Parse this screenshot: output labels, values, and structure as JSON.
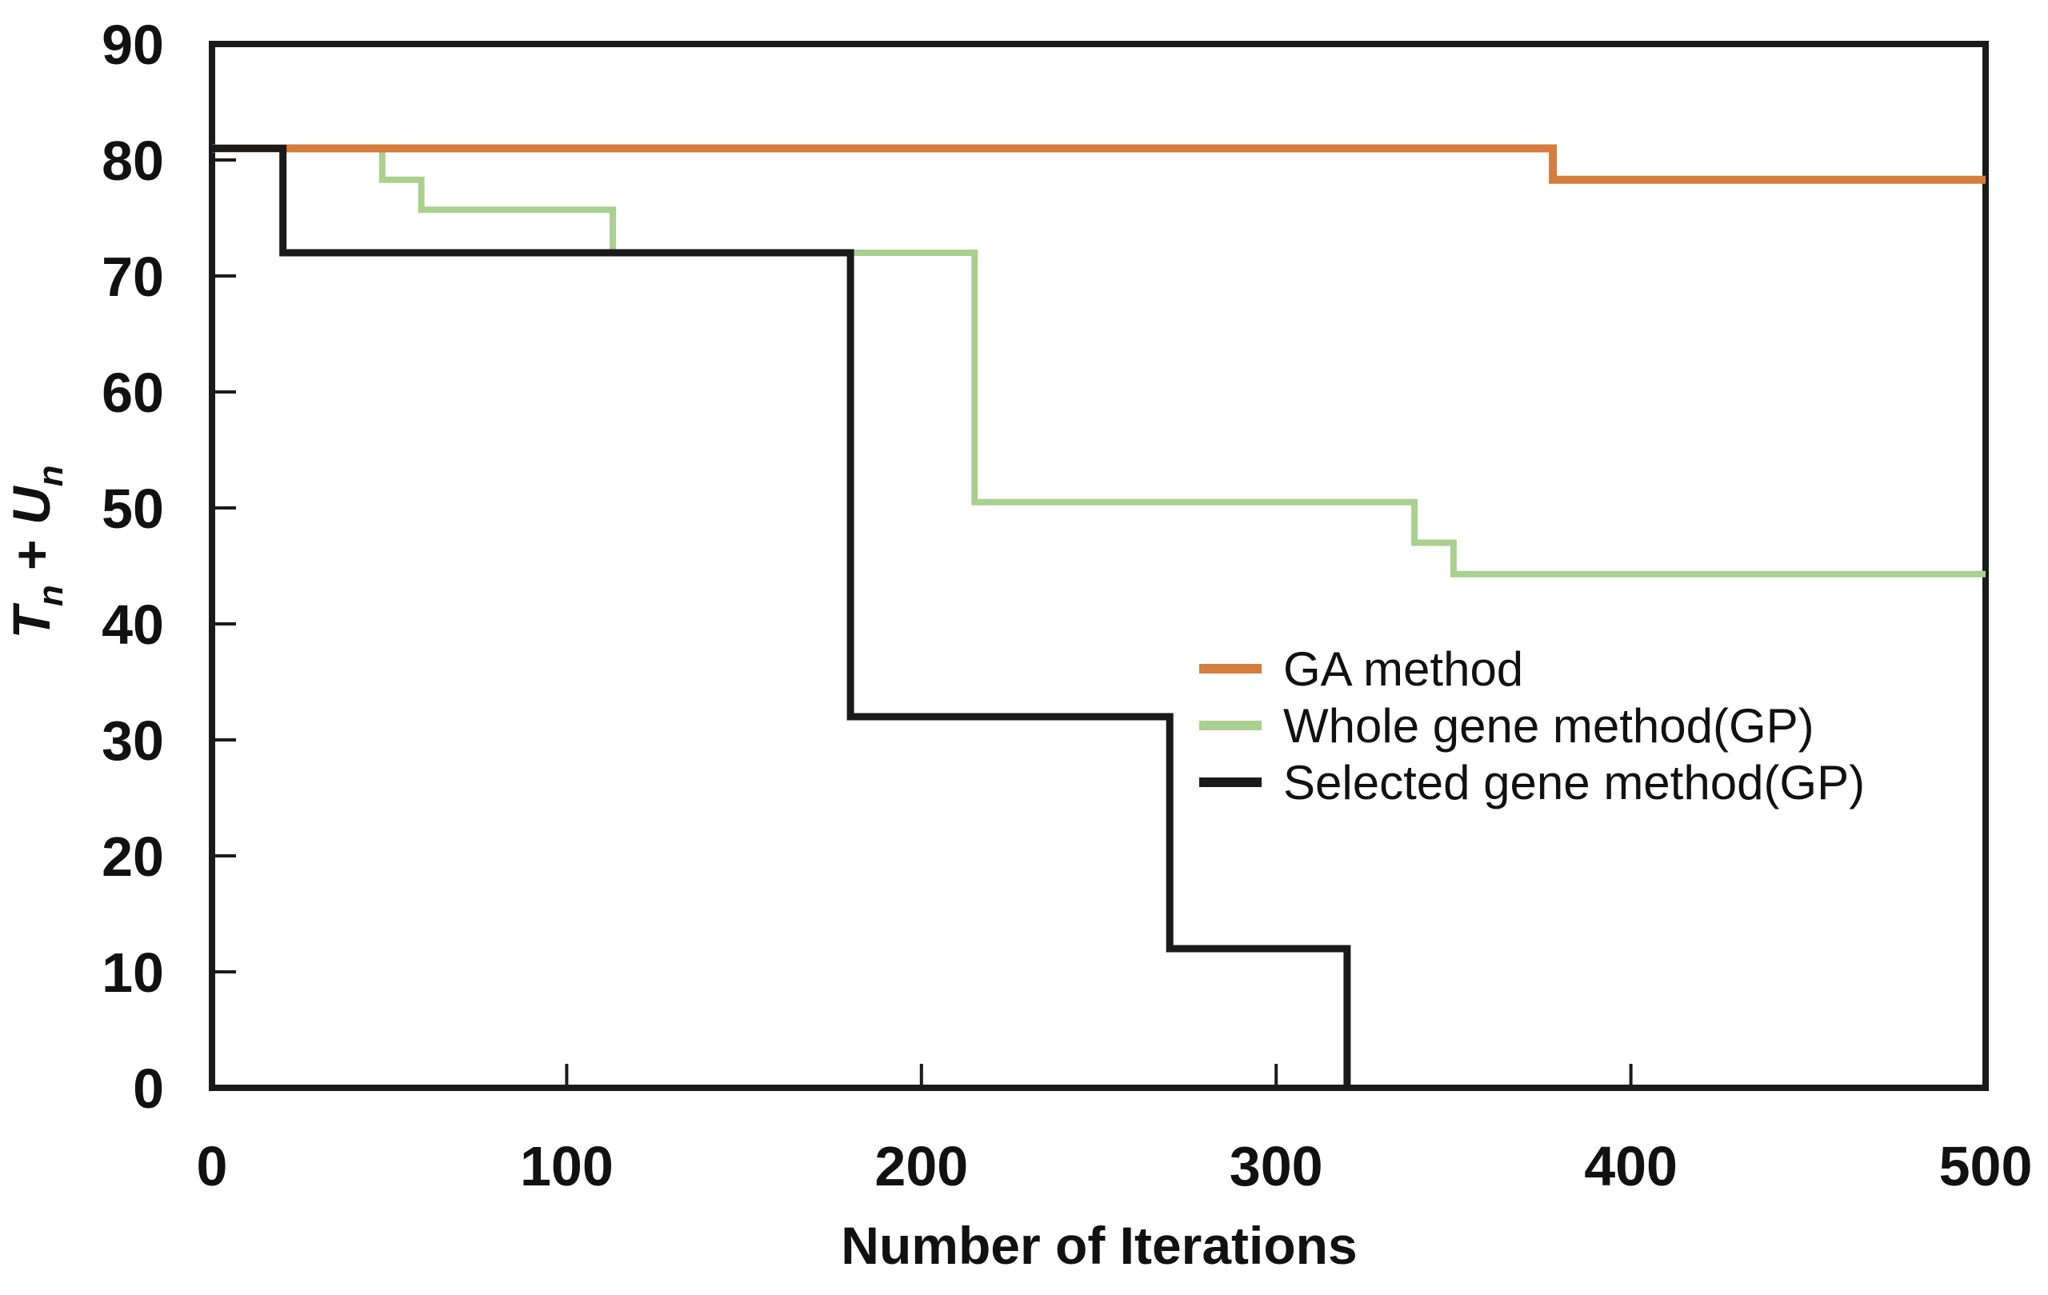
{
  "page": {
    "background": "#ffffff",
    "text_color": "#111111"
  },
  "chart_data": {
    "type": "line",
    "subtype": "step",
    "title": "",
    "xlabel": "Number of Iterations",
    "ylabel": "Tn + Un",
    "ylabel_parts": {
      "t1": "T",
      "s1": "n",
      "plus": " + ",
      "t2": "U",
      "s2": "n"
    },
    "xlim": [
      0,
      500
    ],
    "ylim": [
      0,
      90
    ],
    "x_ticks": [
      0,
      100,
      200,
      300,
      400,
      500
    ],
    "y_ticks": [
      0,
      10,
      20,
      30,
      40,
      50,
      60,
      70,
      80,
      90
    ],
    "grid": false,
    "frame": true,
    "axis_color": "#1a1a1a",
    "legend_position": "inside-right-middle",
    "series": [
      {
        "name": "GA method",
        "color": "#d57d3c",
        "points": [
          [
            0,
            81
          ],
          [
            378,
            81
          ],
          [
            378,
            78.3
          ],
          [
            500,
            78.3
          ]
        ]
      },
      {
        "name": "Whole gene method(GP)",
        "color": "#a9d08e",
        "points": [
          [
            0,
            81
          ],
          [
            48,
            81
          ],
          [
            48,
            78.3
          ],
          [
            59,
            78.3
          ],
          [
            59,
            75.7
          ],
          [
            113,
            75.7
          ],
          [
            113,
            72
          ],
          [
            215,
            72
          ],
          [
            215,
            50.5
          ],
          [
            339,
            50.5
          ],
          [
            339,
            47
          ],
          [
            350,
            47
          ],
          [
            350,
            44.3
          ],
          [
            500,
            44.3
          ]
        ]
      },
      {
        "name": "Selected gene method(GP)",
        "color": "#1a1a1a",
        "points": [
          [
            0,
            81
          ],
          [
            20,
            81
          ],
          [
            20,
            72
          ],
          [
            180,
            72
          ],
          [
            180,
            32
          ],
          [
            270,
            32
          ],
          [
            270,
            12
          ],
          [
            320,
            12
          ],
          [
            320,
            0
          ]
        ]
      }
    ]
  }
}
